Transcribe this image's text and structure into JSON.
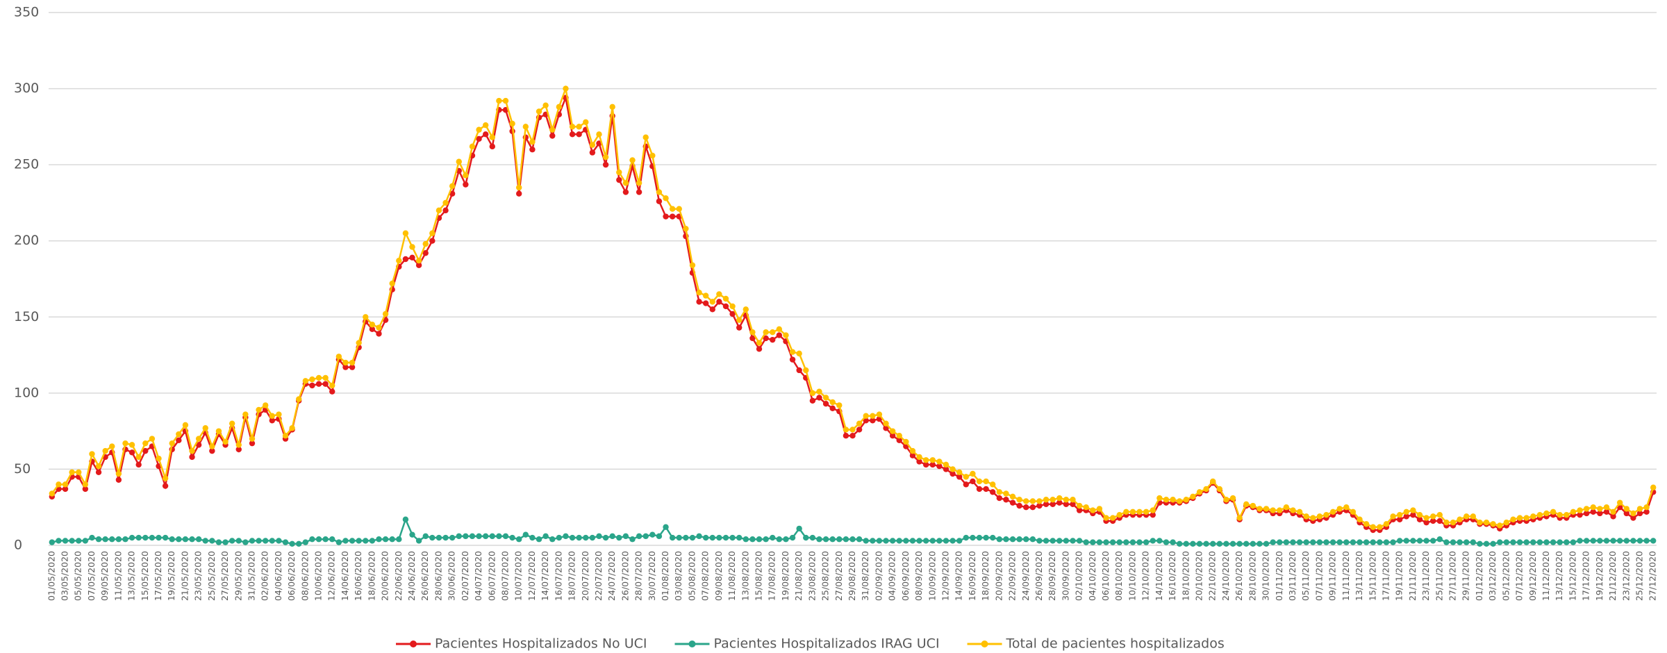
{
  "chart_data": {
    "type": "line",
    "categories": [
      "01/05/2020",
      null,
      "03/05/2020",
      null,
      "05/05/2020",
      null,
      "07/05/2020",
      null,
      "09/05/2020",
      null,
      "11/05/2020",
      null,
      "13/05/2020",
      null,
      "15/05/2020",
      null,
      "17/05/2020",
      null,
      "19/05/2020",
      null,
      "21/05/2020",
      null,
      "23/05/2020",
      null,
      "25/05/2020",
      null,
      "27/05/2020",
      null,
      "29/05/2020",
      null,
      "31/05/2020",
      null,
      "02/06/2020",
      null,
      "04/06/2020",
      null,
      "06/06/2020",
      null,
      "08/06/2020",
      null,
      "10/06/2020",
      null,
      "12/06/2020",
      null,
      "14/06/2020",
      null,
      "16/06/2020",
      null,
      "18/06/2020",
      null,
      "20/06/2020",
      null,
      "22/06/2020",
      null,
      "24/06/2020",
      null,
      "26/06/2020",
      null,
      "28/06/2020",
      null,
      "30/06/2020",
      null,
      "02/07/2020",
      null,
      "04/07/2020",
      null,
      "06/07/2020",
      null,
      "08/07/2020",
      null,
      "10/07/2020",
      null,
      "12/07/2020",
      null,
      "14/07/2020",
      null,
      "16/07/2020",
      null,
      "18/07/2020",
      null,
      "20/07/2020",
      null,
      "22/07/2020",
      null,
      "24/07/2020",
      null,
      "26/07/2020",
      null,
      "28/07/2020",
      null,
      "30/07/2020",
      null,
      "01/08/2020",
      null,
      "03/08/2020",
      null,
      "05/08/2020",
      null,
      "07/08/2020",
      null,
      "09/08/2020",
      null,
      "11/08/2020",
      null,
      "13/08/2020",
      null,
      "15/08/2020",
      null,
      "17/08/2020",
      null,
      "19/08/2020",
      null,
      "21/08/2020",
      null,
      "23/08/2020",
      null,
      "25/08/2020",
      null,
      "27/08/2020",
      null,
      "29/08/2020",
      null,
      "31/08/2020",
      null,
      "02/09/2020",
      null,
      "04/09/2020",
      null,
      "06/09/2020",
      null,
      "08/09/2020",
      null,
      "10/09/2020",
      null,
      "12/09/2020",
      null,
      "14/09/2020",
      null,
      "16/09/2020",
      null,
      "18/09/2020",
      null,
      "20/09/2020",
      null,
      "22/09/2020",
      null,
      "24/09/2020",
      null,
      "26/09/2020",
      null,
      "28/09/2020",
      null,
      "30/09/2020",
      null,
      "02/10/2020",
      null,
      "04/10/2020",
      null,
      "06/10/2020",
      null,
      "08/10/2020",
      null,
      "10/10/2020",
      null,
      "12/10/2020",
      null,
      "14/10/2020",
      null,
      "16/10/2020",
      null,
      "18/10/2020",
      null,
      "20/10/2020",
      null,
      "22/10/2020",
      null,
      "24/10/2020",
      null,
      "26/10/2020",
      null,
      "28/10/2020",
      null,
      "30/10/2020",
      null,
      "01/11/2020",
      null,
      "03/11/2020",
      null,
      "05/11/2020",
      null,
      "07/11/2020",
      null,
      "09/11/2020",
      null,
      "11/11/2020",
      null,
      "13/11/2020",
      null,
      "15/11/2020",
      null,
      "17/11/2020",
      null,
      "19/11/2020",
      null,
      "21/11/2020",
      null,
      "23/11/2020",
      null,
      "25/11/2020",
      null,
      "27/11/2020",
      null,
      "29/11/2020",
      null,
      "01/12/2020",
      null,
      "03/12/2020",
      null,
      "05/12/2020",
      null,
      "07/12/2020",
      null,
      "09/12/2020",
      null,
      "11/12/2020",
      null,
      "13/12/2020",
      null,
      "15/12/2020",
      null,
      "17/12/2020",
      null,
      "19/12/2020",
      null,
      "21/12/2020",
      null,
      "23/12/2020",
      null,
      "25/12/2020",
      null,
      "27/12/2020"
    ],
    "series": [
      {
        "name": "Pacientes Hospitalizados No UCI",
        "color": "#e31a1c",
        "values": [
          32,
          37,
          37,
          45,
          45,
          37,
          55,
          48,
          58,
          61,
          43,
          63,
          61,
          53,
          62,
          65,
          52,
          39,
          63,
          69,
          75,
          58,
          66,
          74,
          62,
          73,
          66,
          77,
          63,
          84,
          67,
          86,
          89,
          82,
          83,
          70,
          76,
          95,
          106,
          105,
          106,
          106,
          101,
          122,
          117,
          117,
          130,
          147,
          142,
          139,
          148,
          168,
          183,
          188,
          189,
          184,
          192,
          200,
          215,
          220,
          231,
          246,
          237,
          256,
          267,
          270,
          262,
          286,
          286,
          272,
          231,
          268,
          260,
          281,
          283,
          269,
          283,
          294,
          270,
          270,
          273,
          258,
          264,
          250,
          282,
          240,
          232,
          249,
          232,
          262,
          249,
          226,
          216,
          216,
          216,
          203,
          179,
          160,
          159,
          155,
          160,
          157,
          152,
          143,
          151,
          136,
          129,
          136,
          135,
          138,
          134,
          122,
          115,
          110,
          95,
          97,
          93,
          90,
          88,
          72,
          72,
          76,
          82,
          82,
          83,
          77,
          72,
          69,
          65,
          59,
          55,
          53,
          53,
          52,
          50,
          47,
          45,
          40,
          42,
          37,
          37,
          35,
          31,
          30,
          28,
          26,
          25,
          25,
          26,
          27,
          27,
          28,
          27,
          27,
          23,
          23,
          21,
          22,
          16,
          16,
          18,
          20,
          20,
          20,
          20,
          20,
          28,
          28,
          28,
          28,
          29,
          31,
          34,
          36,
          41,
          36,
          29,
          30,
          17,
          26,
          25,
          23,
          23,
          21,
          21,
          23,
          21,
          20,
          17,
          16,
          17,
          18,
          20,
          22,
          23,
          20,
          15,
          12,
          10,
          10,
          12,
          17,
          17,
          19,
          20,
          17,
          15,
          16,
          16,
          13,
          13,
          15,
          17,
          17,
          14,
          14,
          13,
          11,
          13,
          15,
          16,
          16,
          17,
          18,
          19,
          20,
          18,
          18,
          20,
          20,
          21,
          22,
          21,
          22,
          19,
          25,
          21,
          18,
          21,
          22,
          35
        ]
      },
      {
        "name": "Pacientes Hospitalizados IRAG UCI",
        "color": "#2aa58a",
        "values": [
          2,
          3,
          3,
          3,
          3,
          3,
          5,
          4,
          4,
          4,
          4,
          4,
          5,
          5,
          5,
          5,
          5,
          5,
          4,
          4,
          4,
          4,
          4,
          3,
          3,
          2,
          2,
          3,
          3,
          2,
          3,
          3,
          3,
          3,
          3,
          2,
          1,
          1,
          2,
          4,
          4,
          4,
          4,
          2,
          3,
          3,
          3,
          3,
          3,
          4,
          4,
          4,
          4,
          17,
          7,
          3,
          6,
          5,
          5,
          5,
          5,
          6,
          6,
          6,
          6,
          6,
          6,
          6,
          6,
          5,
          4,
          7,
          5,
          4,
          6,
          4,
          5,
          6,
          5,
          5,
          5,
          5,
          6,
          5,
          6,
          5,
          6,
          4,
          6,
          6,
          7,
          6,
          12,
          5,
          5,
          5,
          5,
          6,
          5,
          5,
          5,
          5,
          5,
          5,
          4,
          4,
          4,
          4,
          5,
          4,
          4,
          5,
          11,
          5,
          5,
          4,
          4,
          4,
          4,
          4,
          4,
          4,
          3,
          3,
          3,
          3,
          3,
          3,
          3,
          3,
          3,
          3,
          3,
          3,
          3,
          3,
          3,
          5,
          5,
          5,
          5,
          5,
          4,
          4,
          4,
          4,
          4,
          4,
          3,
          3,
          3,
          3,
          3,
          3,
          3,
          2,
          2,
          2,
          2,
          2,
          2,
          2,
          2,
          2,
          2,
          3,
          3,
          2,
          2,
          1,
          1,
          1,
          1,
          1,
          1,
          1,
          1,
          1,
          1,
          1,
          1,
          1,
          1,
          2,
          2,
          2,
          2,
          2,
          2,
          2,
          2,
          2,
          2,
          2,
          2,
          2,
          2,
          2,
          2,
          2,
          2,
          2,
          3,
          3,
          3,
          3,
          3,
          3,
          4,
          2,
          2,
          2,
          2,
          2,
          1,
          1,
          1,
          2,
          2,
          2,
          2,
          2,
          2,
          2,
          2,
          2,
          2,
          2,
          2,
          3,
          3,
          3,
          3,
          3,
          3,
          3,
          3,
          3,
          3,
          3,
          3
        ]
      },
      {
        "name": "Total de pacientes hospitalizados",
        "color": "#ffc000",
        "values": [
          34,
          40,
          40,
          48,
          48,
          40,
          60,
          52,
          62,
          65,
          47,
          67,
          66,
          58,
          67,
          70,
          57,
          44,
          67,
          73,
          79,
          62,
          70,
          77,
          65,
          75,
          68,
          80,
          66,
          86,
          70,
          89,
          92,
          85,
          86,
          72,
          77,
          96,
          108,
          109,
          110,
          110,
          105,
          124,
          120,
          120,
          133,
          150,
          145,
          143,
          152,
          172,
          187,
          205,
          196,
          187,
          198,
          205,
          220,
          225,
          236,
          252,
          243,
          262,
          273,
          276,
          268,
          292,
          292,
          277,
          235,
          275,
          265,
          285,
          289,
          273,
          288,
          300,
          275,
          275,
          278,
          263,
          270,
          255,
          288,
          245,
          238,
          253,
          238,
          268,
          256,
          232,
          228,
          221,
          221,
          208,
          184,
          166,
          164,
          160,
          165,
          162,
          157,
          148,
          155,
          140,
          133,
          140,
          140,
          142,
          138,
          127,
          126,
          115,
          100,
          101,
          97,
          94,
          92,
          76,
          76,
          80,
          85,
          85,
          86,
          80,
          75,
          72,
          68,
          62,
          58,
          56,
          56,
          55,
          53,
          50,
          48,
          45,
          47,
          42,
          42,
          40,
          35,
          34,
          32,
          30,
          29,
          29,
          29,
          30,
          30,
          31,
          30,
          30,
          26,
          25,
          23,
          24,
          18,
          18,
          20,
          22,
          22,
          22,
          22,
          23,
          31,
          30,
          30,
          29,
          30,
          32,
          35,
          37,
          42,
          37,
          30,
          31,
          18,
          27,
          26,
          24,
          24,
          23,
          23,
          25,
          23,
          22,
          19,
          18,
          19,
          20,
          22,
          24,
          25,
          22,
          17,
          14,
          12,
          12,
          14,
          19,
          20,
          22,
          23,
          20,
          18,
          19,
          20,
          15,
          15,
          17,
          19,
          19,
          15,
          15,
          14,
          13,
          15,
          17,
          18,
          18,
          19,
          20,
          21,
          22,
          20,
          20,
          22,
          23,
          24,
          25,
          24,
          25,
          22,
          28,
          24,
          21,
          24,
          25,
          38
        ]
      }
    ],
    "ylim": [
      0,
      350
    ],
    "yticks": [
      0,
      50,
      100,
      150,
      200,
      250,
      300,
      350
    ],
    "grid": true,
    "legend": "bottom"
  }
}
